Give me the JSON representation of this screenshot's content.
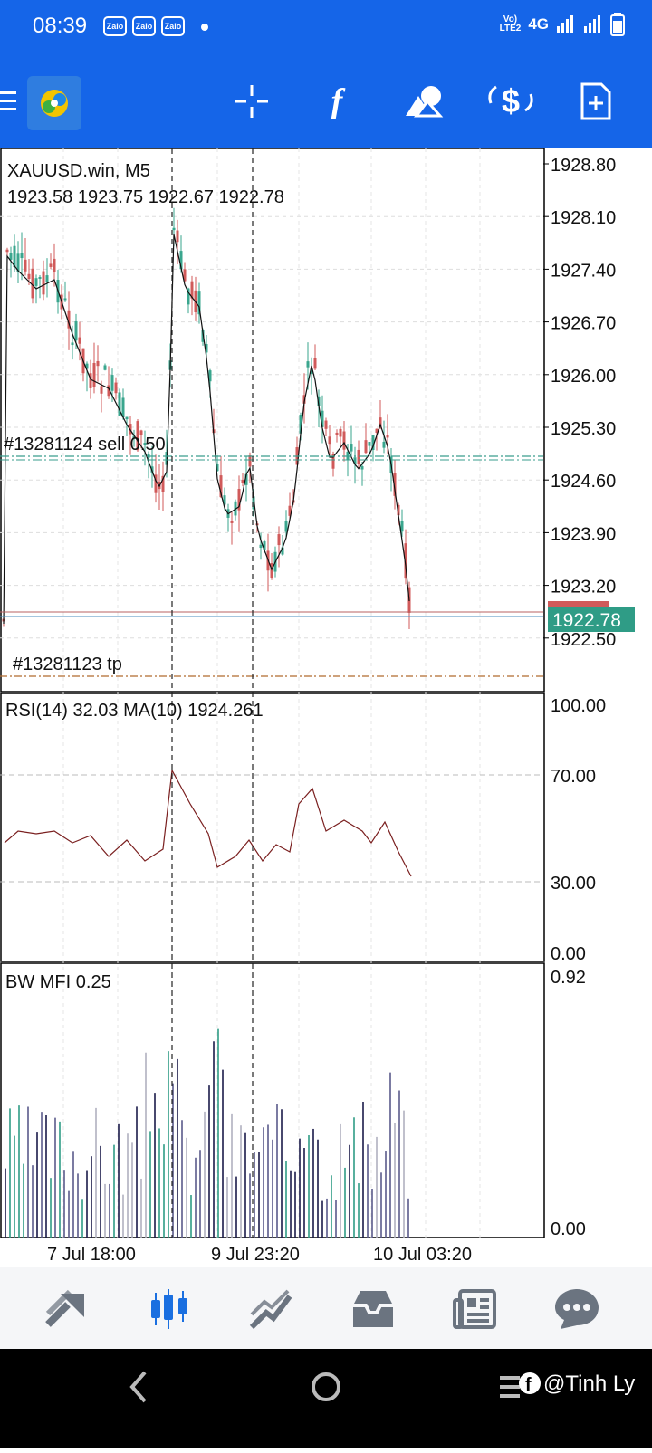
{
  "status_bar": {
    "time": "08:39",
    "notifications": [
      "Zalo",
      "Zalo",
      "Zalo"
    ],
    "network": "4G",
    "volte": "VoLTE2"
  },
  "toolbar": {
    "icons": [
      "menu-icon",
      "app-logo",
      "crosshair-icon",
      "indicators-icon",
      "objects-icon",
      "trade-icon",
      "new-order-icon"
    ]
  },
  "chart": {
    "symbol_label": "XAUUSD.win, M5",
    "ohlc_label": "1923.58 1923.75 1922.67 1922.78",
    "sell_order_label": "#13281124 sell 0.50",
    "tp_label": "#13281123 tp",
    "current_price": "1922.78",
    "price_ticks": [
      "1928.80",
      "1928.10",
      "1927.40",
      "1926.70",
      "1926.00",
      "1925.30",
      "1924.60",
      "1923.90",
      "1923.20",
      "1922.50"
    ],
    "rsi_label": "RSI(14) 32.03 MA(10) 1924.261",
    "rsi_ticks": [
      "100.00",
      "70.00",
      "30.00",
      "0.00"
    ],
    "mfi_label": "BW MFI 0.25",
    "mfi_ticks": [
      "0.92",
      "0.00"
    ],
    "time_labels": [
      "7 Jul 18:00",
      "9 Jul 23:20",
      "10 Jul 03:20"
    ]
  },
  "colors": {
    "brand": "#1565e8",
    "bull": "#3aa68e",
    "bear": "#d05a5a",
    "price_tag": "#2f9c86"
  },
  "bottom_nav": [
    "quotes-icon",
    "chart-icon",
    "trade-icon",
    "history-icon",
    "news-icon",
    "messages-icon"
  ],
  "watermark": "@Tinh Ly"
}
